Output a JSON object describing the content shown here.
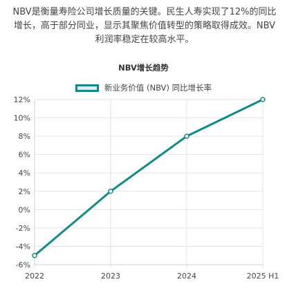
{
  "intro_text": "NBV是衡量寿险公司增长质量的关键。民生人寿实现了12%的同比增长，高于部分同业，显示其聚焦价值转型的策略取得成效。NBV利润率稳定在较高水平。",
  "chart_data": {
    "type": "line",
    "title": "NBV增长趋势",
    "categories": [
      "2022",
      "2023",
      "2024",
      "2025 H1"
    ],
    "series": [
      {
        "name": "新业务价值 (NBV) 同比增长率",
        "values": [
          -5,
          2,
          8,
          12
        ],
        "color": "#0f8a86"
      }
    ],
    "ylim": [
      -6,
      12
    ],
    "y_ticks": [
      "-6%",
      "-4%",
      "-2%",
      "0%",
      "2%",
      "4%",
      "6%",
      "8%",
      "10%",
      "12%"
    ],
    "grid": true,
    "legend_position": "top-center"
  }
}
